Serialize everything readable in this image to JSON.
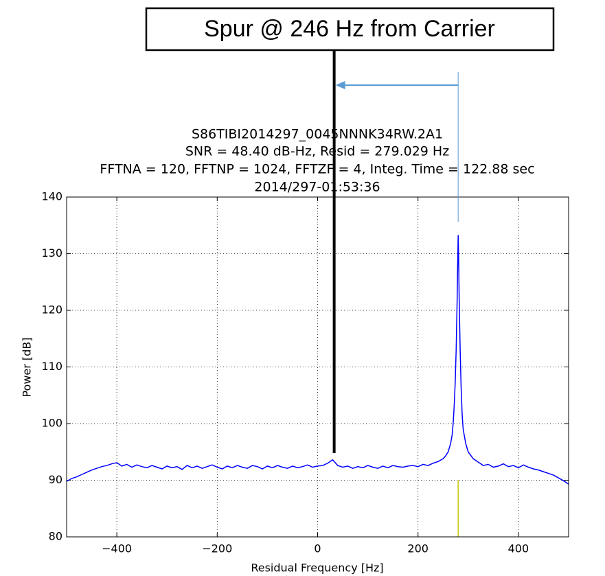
{
  "chart_data": {
    "type": "line",
    "title": [
      "S86TIBI2014297_0045NNNK34RW.2A1",
      "SNR = 48.40 dB-Hz, Resid = 279.029 Hz",
      "FFTNA = 120, FFTNP = 1024, FFTZF = 4, Integ. Time = 122.88 sec",
      "2014/297-01:53:36"
    ],
    "x_label": "Residual Frequency [Hz]",
    "y_label": "Power [dB]",
    "xlim": [
      -500,
      500
    ],
    "ylim": [
      80,
      140
    ],
    "xticks": [
      {
        "value": -400,
        "label": "−400"
      },
      {
        "value": -200,
        "label": "−200"
      },
      0,
      200,
      400
    ],
    "yticks": [
      80,
      90,
      100,
      110,
      120,
      130,
      140
    ],
    "grid": true,
    "series": [
      {
        "color": "#0000ff",
        "x": [
          -500,
          -490,
          -480,
          -470,
          -460,
          -450,
          -440,
          -430,
          -420,
          -410,
          -400,
          -390,
          -380,
          -370,
          -360,
          -350,
          -340,
          -330,
          -320,
          -310,
          -300,
          -290,
          -280,
          -270,
          -260,
          -250,
          -240,
          -230,
          -220,
          -210,
          -200,
          -190,
          -180,
          -170,
          -160,
          -150,
          -140,
          -130,
          -120,
          -110,
          -100,
          -90,
          -80,
          -70,
          -60,
          -50,
          -40,
          -30,
          -20,
          -10,
          0,
          10,
          20,
          30,
          40,
          50,
          60,
          70,
          80,
          90,
          100,
          110,
          120,
          130,
          140,
          150,
          160,
          170,
          180,
          190,
          200,
          210,
          220,
          230,
          240,
          250,
          255,
          260,
          265,
          268,
          270,
          272,
          274,
          276,
          278,
          279,
          280,
          281,
          282,
          284,
          286,
          288,
          290,
          295,
          300,
          310,
          320,
          330,
          340,
          350,
          360,
          370,
          380,
          390,
          400,
          410,
          420,
          430,
          440,
          450,
          460,
          470,
          480,
          490,
          500
        ],
        "values": [
          89.8,
          90.3,
          90.6,
          91.0,
          91.4,
          91.8,
          92.1,
          92.4,
          92.6,
          92.9,
          93.1,
          92.5,
          92.8,
          92.3,
          92.7,
          92.4,
          92.2,
          92.6,
          92.3,
          92.0,
          92.5,
          92.2,
          92.4,
          91.9,
          92.6,
          92.2,
          92.5,
          92.1,
          92.4,
          92.7,
          92.3,
          92.0,
          92.5,
          92.2,
          92.6,
          92.3,
          92.1,
          92.6,
          92.4,
          92.0,
          92.5,
          92.2,
          92.6,
          92.3,
          92.1,
          92.5,
          92.2,
          92.4,
          92.7,
          92.3,
          92.5,
          92.6,
          93.0,
          93.6,
          92.6,
          92.3,
          92.5,
          92.1,
          92.4,
          92.2,
          92.6,
          92.3,
          92.1,
          92.5,
          92.2,
          92.6,
          92.4,
          92.3,
          92.5,
          92.6,
          92.4,
          92.8,
          92.6,
          93.0,
          93.3,
          93.8,
          94.3,
          95.0,
          96.5,
          98.0,
          100.0,
          103.0,
          107.0,
          113.0,
          122.0,
          128.0,
          133.3,
          129.0,
          122.0,
          113.0,
          106.0,
          101.5,
          99.0,
          96.5,
          95.0,
          93.8,
          93.2,
          92.6,
          92.8,
          92.3,
          92.5,
          92.9,
          92.4,
          92.6,
          92.2,
          92.7,
          92.3,
          92.0,
          91.8,
          91.5,
          91.2,
          90.9,
          90.4,
          89.9,
          89.3
        ]
      }
    ],
    "carrier_line": {
      "x": 280,
      "y": [
        80,
        90
      ],
      "color": "#c8c800"
    },
    "annotation": {
      "text": "Spur @ 246 Hz from Carrier",
      "spur_x": 33,
      "arrow_color": "#5b9bd5"
    }
  }
}
